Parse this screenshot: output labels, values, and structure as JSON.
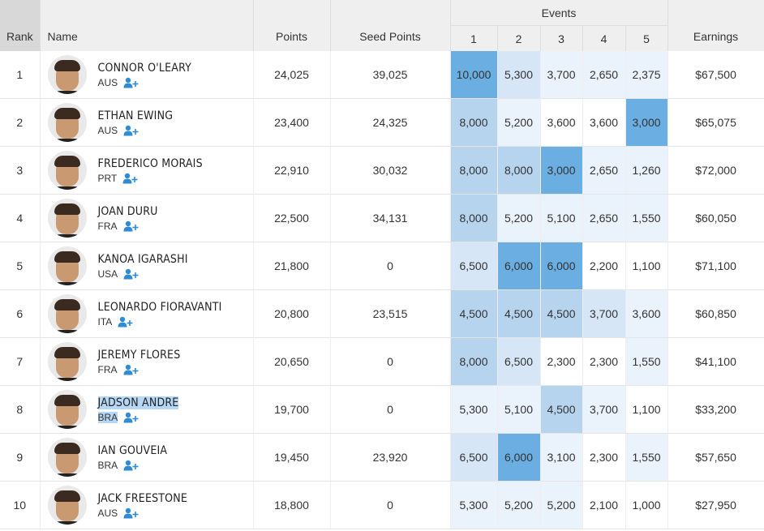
{
  "headers": {
    "rank": "Rank",
    "name": "Name",
    "points": "Points",
    "seed_points": "Seed Points",
    "events": "Events",
    "event_numbers": [
      "1",
      "2",
      "3",
      "4",
      "5"
    ],
    "earnings": "Earnings"
  },
  "colors": {
    "header_bg": "#efefef",
    "rank_header_bg": "#d8d8d8",
    "event_max": "#6aaee2",
    "event_high": "#b7d4ef",
    "event_mid": "#d6e6f6",
    "event_low": "#eaf2fb",
    "selection": "#b6d7f5",
    "follow_icon": "#2f8bd6"
  },
  "rows": [
    {
      "rank": "1",
      "name": "CONNOR O'LEARY",
      "country": "AUS",
      "points": "24,025",
      "seed_points": "39,025",
      "events": [
        "10,000",
        "5,300",
        "3,700",
        "2,650",
        "2,375"
      ],
      "shade": [
        4,
        2,
        1,
        1,
        1
      ],
      "earnings": "$67,500"
    },
    {
      "rank": "2",
      "name": "ETHAN EWING",
      "country": "AUS",
      "points": "23,400",
      "seed_points": "24,325",
      "events": [
        "8,000",
        "5,200",
        "3,600",
        "3,600",
        "3,000"
      ],
      "shade": [
        3,
        1,
        0,
        0,
        4
      ],
      "earnings": "$65,075"
    },
    {
      "rank": "3",
      "name": "FREDERICO MORAIS",
      "country": "PRT",
      "points": "22,910",
      "seed_points": "30,032",
      "events": [
        "8,000",
        "8,000",
        "3,000",
        "2,650",
        "1,260"
      ],
      "shade": [
        3,
        3,
        4,
        1,
        1
      ],
      "earnings": "$72,000"
    },
    {
      "rank": "4",
      "name": "JOAN DURU",
      "country": "FRA",
      "points": "22,500",
      "seed_points": "34,131",
      "events": [
        "8,000",
        "5,200",
        "5,100",
        "2,650",
        "1,550"
      ],
      "shade": [
        3,
        1,
        1,
        1,
        1
      ],
      "earnings": "$60,050"
    },
    {
      "rank": "5",
      "name": "KANOA IGARASHI",
      "country": "USA",
      "points": "21,800",
      "seed_points": "0",
      "events": [
        "6,500",
        "6,000",
        "6,000",
        "2,200",
        "1,100"
      ],
      "shade": [
        2,
        4,
        4,
        0,
        0
      ],
      "earnings": "$71,100"
    },
    {
      "rank": "6",
      "name": "LEONARDO FIORAVANTI",
      "country": "ITA",
      "points": "20,800",
      "seed_points": "23,515",
      "events": [
        "4,500",
        "4,500",
        "4,500",
        "3,700",
        "3,600"
      ],
      "shade": [
        3,
        3,
        3,
        2,
        1
      ],
      "earnings": "$60,850"
    },
    {
      "rank": "7",
      "name": "JEREMY FLORES",
      "country": "FRA",
      "points": "20,650",
      "seed_points": "0",
      "events": [
        "8,000",
        "6,500",
        "2,300",
        "2,300",
        "1,550"
      ],
      "shade": [
        3,
        2,
        0,
        0,
        1
      ],
      "earnings": "$41,100"
    },
    {
      "rank": "8",
      "name": "JADSON ANDRE",
      "country": "BRA",
      "points": "19,700",
      "seed_points": "0",
      "events": [
        "5,300",
        "5,100",
        "4,500",
        "3,700",
        "1,100"
      ],
      "shade": [
        1,
        1,
        3,
        1,
        0
      ],
      "earnings": "$33,200",
      "selected": true
    },
    {
      "rank": "9",
      "name": "IAN GOUVEIA",
      "country": "BRA",
      "points": "19,450",
      "seed_points": "23,920",
      "events": [
        "6,500",
        "6,000",
        "3,100",
        "2,300",
        "1,550"
      ],
      "shade": [
        2,
        4,
        1,
        0,
        1
      ],
      "earnings": "$57,650"
    },
    {
      "rank": "10",
      "name": "JACK FREESTONE",
      "country": "AUS",
      "points": "18,800",
      "seed_points": "0",
      "events": [
        "5,300",
        "5,200",
        "5,200",
        "2,100",
        "1,000"
      ],
      "shade": [
        1,
        1,
        1,
        0,
        0
      ],
      "earnings": "$27,950"
    }
  ]
}
